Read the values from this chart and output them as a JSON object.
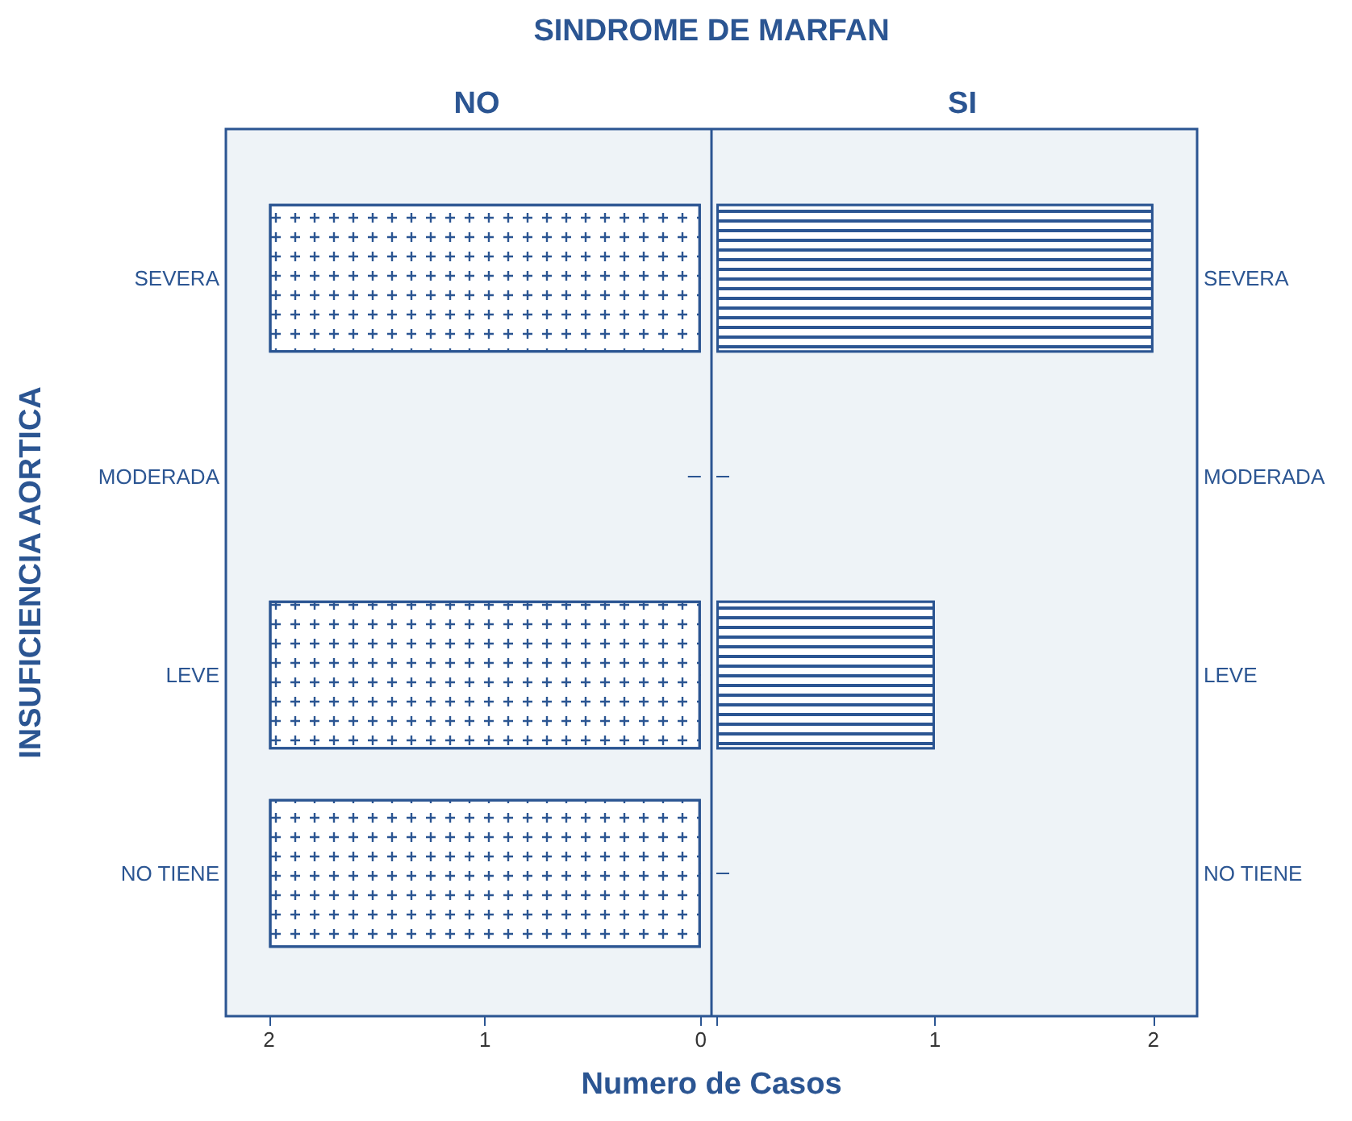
{
  "chart_data": [
    {
      "type": "bar",
      "orientation": "horizontal",
      "title": "NO",
      "ylabel": "INSUFICIENCIA AORTICA",
      "xlabel": "Numero de Casos",
      "annotations": [
        "SINDROME DE MARFAN"
      ],
      "categories": [
        "SEVERA",
        "MODERADA",
        "LEVE",
        "NO TIENE"
      ],
      "values": [
        2,
        null,
        2,
        2
      ],
      "color": "#ffffff",
      "xlim": [
        2.2,
        0
      ],
      "xticks": [
        2,
        1,
        0
      ]
    },
    {
      "type": "bar",
      "orientation": "horizontal",
      "title": "SI",
      "categories": [
        "SEVERA",
        "MODERADA",
        "LEVE",
        "NO TIENE"
      ],
      "values": [
        2,
        null,
        1,
        null
      ],
      "color": "#2b5592",
      "xlim": [
        0,
        2.2
      ],
      "xticks": [
        {
          "value": 0,
          "label": null
        },
        1,
        2
      ]
    }
  ]
}
